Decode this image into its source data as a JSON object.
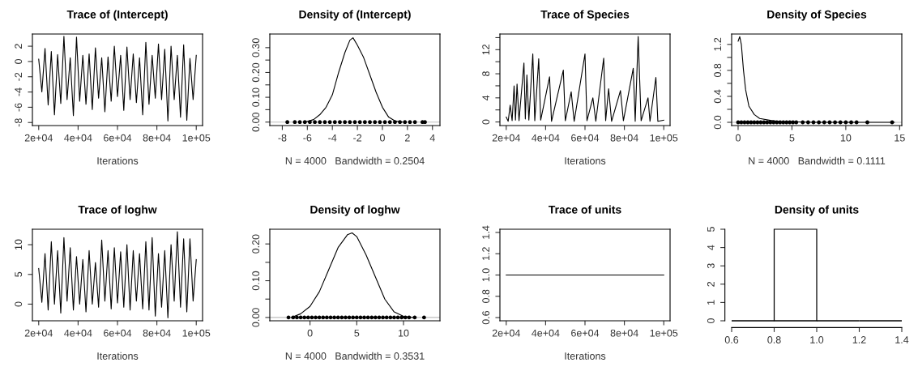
{
  "chart_data": [
    {
      "type": "line",
      "title": "Trace of (Intercept)",
      "xlabel": "Iterations",
      "xlim": [
        16800,
        103200
      ],
      "ylim": [
        -8.4,
        3.6
      ],
      "xticks": [
        {
          "value": 20000,
          "label": "2e+04"
        },
        {
          "value": 40000,
          "label": "4e+04"
        },
        {
          "value": 60000,
          "label": "6e+04"
        },
        {
          "value": 80000,
          "label": "8e+04"
        },
        {
          "value": 100000,
          "label": "1e+05"
        }
      ],
      "yticks": [
        -8,
        -6,
        -4,
        -2,
        0,
        2
      ],
      "x": [
        20000,
        21600,
        23200,
        24800,
        26400,
        28000,
        29600,
        31200,
        32800,
        34400,
        36000,
        37600,
        39200,
        40800,
        42400,
        44000,
        45600,
        47200,
        48800,
        50400,
        52000,
        53600,
        55200,
        56800,
        58400,
        60000,
        61600,
        63200,
        64800,
        66400,
        68000,
        69600,
        71200,
        72800,
        74400,
        76000,
        77600,
        79200,
        80800,
        82400,
        84000,
        85600,
        87200,
        88800,
        90400,
        92000,
        93600,
        95200,
        96800,
        98400,
        100000
      ],
      "series": [
        {
          "color": "#000000",
          "values": [
            0.3,
            -4.0,
            1.7,
            -5.7,
            1.3,
            -7.0,
            0.9,
            -5.5,
            3.3,
            -5.0,
            0.5,
            -7.1,
            3.2,
            -5.2,
            0.8,
            -5.6,
            1.0,
            -6.3,
            1.8,
            -4.8,
            0.5,
            -6.6,
            0.6,
            -5.2,
            2.0,
            -4.6,
            0.8,
            -6.4,
            1.9,
            -5.0,
            1.0,
            -5.4,
            0.5,
            -7.0,
            2.5,
            -5.6,
            0.8,
            -4.8,
            2.3,
            -5.0,
            1.6,
            -7.8,
            2.0,
            -5.0,
            0.8,
            -7.3,
            2.2,
            -7.7,
            0.4,
            -5.0,
            0.8
          ]
        }
      ]
    },
    {
      "type": "line",
      "title": "Density of (Intercept)",
      "xlabel": "N = 4000   Bandwidth = 0.2504",
      "xlim": [
        -9.0,
        4.6
      ],
      "ylim": [
        -0.014,
        0.355
      ],
      "xticks": [
        -8,
        -6,
        -4,
        -2,
        0,
        2,
        4
      ],
      "yticks": [
        {
          "value": 0,
          "label": "0.00"
        },
        {
          "value": 0.05,
          "label": null
        },
        {
          "value": 0.1,
          "label": "0.10"
        },
        {
          "value": 0.15,
          "label": null
        },
        {
          "value": 0.2,
          "label": "0.20"
        },
        {
          "value": 0.25,
          "label": null
        },
        {
          "value": 0.3,
          "label": "0.30"
        }
      ],
      "ref_lines": [
        {
          "axis": "y",
          "value": 0,
          "color": "#bebebe"
        }
      ],
      "series": [
        {
          "color": "#000000",
          "x": [
            -6.2,
            -5.5,
            -5,
            -4.5,
            -4,
            -3.5,
            -3,
            -2.6,
            -2.35,
            -2,
            -1.5,
            -1,
            -0.5,
            0,
            0.5,
            1,
            1.6
          ],
          "values": [
            0,
            0.01,
            0.03,
            0.06,
            0.11,
            0.2,
            0.28,
            0.33,
            0.34,
            0.31,
            0.26,
            0.19,
            0.12,
            0.06,
            0.02,
            0.005,
            0
          ]
        },
        {
          "type": "scatter",
          "color": "#000000",
          "x": [
            -7.6,
            -7.0,
            -6.6,
            -6.2,
            -5.8,
            -5.4,
            -5.0,
            -4.6,
            -4.2,
            -3.8,
            -3.4,
            -3.0,
            -2.6,
            -2.2,
            -1.8,
            -1.4,
            -1.0,
            -0.6,
            -0.2,
            0.2,
            0.6,
            1.0,
            1.4,
            1.8,
            2.2,
            2.6,
            3.2,
            3.4
          ],
          "values": [
            0,
            0,
            0,
            0,
            0,
            0,
            0,
            0,
            0,
            0,
            0,
            0,
            0,
            0,
            0,
            0,
            0,
            0,
            0,
            0,
            0,
            0,
            0,
            0,
            0,
            0,
            0,
            0
          ]
        }
      ]
    },
    {
      "type": "line",
      "title": "Trace of Species",
      "xlabel": "Iterations",
      "xlim": [
        16800,
        103200
      ],
      "ylim": [
        -0.6,
        14.6
      ],
      "xticks": [
        {
          "value": 20000,
          "label": "2e+04"
        },
        {
          "value": 40000,
          "label": "4e+04"
        },
        {
          "value": 60000,
          "label": "6e+04"
        },
        {
          "value": 80000,
          "label": "8e+04"
        },
        {
          "value": 100000,
          "label": "1e+05"
        }
      ],
      "yticks": [
        0,
        {
          "value": 2,
          "label": null
        },
        4,
        {
          "value": 6,
          "label": null
        },
        8,
        {
          "value": 10,
          "label": null
        },
        12,
        {
          "value": 14,
          "label": null
        }
      ],
      "series": [
        {
          "color": "#000000",
          "x": [
            20000,
            21000,
            22000,
            23000,
            24000,
            24700,
            25500,
            26500,
            29000,
            29700,
            30500,
            31500,
            33500,
            34500,
            36500,
            37500,
            42000,
            43000,
            49000,
            50000,
            53000,
            54500,
            60000,
            61000,
            64000,
            65500,
            69500,
            70500,
            72000,
            73500,
            78000,
            79500,
            84500,
            85500,
            87000,
            88500,
            92000,
            93000,
            96000,
            97000,
            100000
          ],
          "values": [
            0.8,
            0.1,
            2.8,
            0.2,
            6.0,
            0.3,
            6.3,
            0.2,
            9.8,
            0.5,
            7.8,
            0.3,
            11.3,
            0.2,
            10.5,
            0.3,
            7.5,
            0.1,
            8.6,
            0.2,
            5.0,
            0.1,
            11.3,
            0.2,
            4.0,
            0.1,
            10.6,
            0.2,
            5.5,
            0.1,
            5.2,
            0.2,
            8.9,
            0.1,
            14.2,
            0.2,
            4.0,
            0.1,
            7.4,
            0.1,
            0.3
          ]
        }
      ]
    },
    {
      "type": "line",
      "title": "Density of Species",
      "xlabel": "N = 4000   Bandwidth = 0.1111",
      "xlim": [
        -0.6,
        15.2
      ],
      "ylim": [
        -0.05,
        1.36
      ],
      "xticks": [
        0,
        5,
        10,
        15
      ],
      "yticks": [
        {
          "value": 0,
          "label": "0.0"
        },
        {
          "value": 0.2,
          "label": null
        },
        {
          "value": 0.4,
          "label": "0.4"
        },
        {
          "value": 0.6,
          "label": null
        },
        {
          "value": 0.8,
          "label": "0.8"
        },
        {
          "value": 1.0,
          "label": null
        },
        {
          "value": 1.2,
          "label": "1.2"
        }
      ],
      "ref_lines": [
        {
          "axis": "y",
          "value": 0,
          "color": "#bebebe"
        }
      ],
      "series": [
        {
          "color": "#000000",
          "x": [
            0,
            0.15,
            0.3,
            0.5,
            0.7,
            1,
            1.5,
            2,
            3,
            4,
            5,
            7,
            10,
            14.5
          ],
          "values": [
            1.25,
            1.32,
            1.2,
            0.8,
            0.5,
            0.25,
            0.12,
            0.06,
            0.03,
            0.01,
            0.01,
            0,
            0,
            0
          ]
        },
        {
          "type": "scatter",
          "color": "#000000",
          "x": [
            0,
            0.3,
            0.6,
            0.9,
            1.2,
            1.5,
            1.8,
            2.1,
            2.4,
            2.7,
            3.0,
            3.3,
            3.6,
            3.9,
            4.2,
            4.5,
            4.8,
            5.1,
            5.4,
            6.0,
            6.5,
            7.0,
            7.5,
            8.0,
            8.5,
            9.0,
            9.5,
            10.0,
            10.5,
            11.0,
            12.0,
            14.3
          ],
          "values": [
            0,
            0,
            0,
            0,
            0,
            0,
            0,
            0,
            0,
            0,
            0,
            0,
            0,
            0,
            0,
            0,
            0,
            0,
            0,
            0,
            0,
            0,
            0,
            0,
            0,
            0,
            0,
            0,
            0,
            0,
            0,
            0
          ]
        }
      ]
    },
    {
      "type": "line",
      "title": "Trace of loghw",
      "xlabel": "Iterations",
      "xlim": [
        16800,
        103200
      ],
      "ylim": [
        -2.8,
        12.6
      ],
      "xticks": [
        {
          "value": 20000,
          "label": "2e+04"
        },
        {
          "value": 40000,
          "label": "4e+04"
        },
        {
          "value": 60000,
          "label": "6e+04"
        },
        {
          "value": 80000,
          "label": "8e+04"
        },
        {
          "value": 100000,
          "label": "1e+05"
        }
      ],
      "yticks": [
        0,
        5,
        10
      ],
      "x": [
        20000,
        21600,
        23200,
        24800,
        26400,
        28000,
        29600,
        31200,
        32800,
        34400,
        36000,
        37600,
        39200,
        40800,
        42400,
        44000,
        45600,
        47200,
        48800,
        50400,
        52000,
        53600,
        55200,
        56800,
        58400,
        60000,
        61600,
        63200,
        64800,
        66400,
        68000,
        69600,
        71200,
        72800,
        74400,
        76000,
        77600,
        79200,
        80800,
        82400,
        84000,
        85600,
        87200,
        88800,
        90400,
        92000,
        93600,
        95200,
        96800,
        98400,
        100000
      ],
      "series": [
        {
          "color": "#000000",
          "values": [
            6,
            0.3,
            8.5,
            -1,
            10.5,
            0,
            9,
            -1.5,
            11.2,
            0.5,
            9.5,
            -1,
            8,
            0,
            7.5,
            -1.3,
            9,
            0,
            7,
            -0.5,
            10.8,
            0.5,
            9,
            -0.8,
            9.5,
            0.2,
            8.8,
            -0.5,
            10,
            -1,
            9,
            0.5,
            8.5,
            -0.8,
            10.5,
            -1,
            11.2,
            -2,
            8.5,
            -0.5,
            9,
            -2.3,
            10,
            0.5,
            12.2,
            -0.5,
            11,
            -1.3,
            11,
            0.5,
            7.5
          ]
        }
      ]
    },
    {
      "type": "line",
      "title": "Density of loghw",
      "xlabel": "N = 4000   Bandwidth = 0.3531",
      "xlim": [
        -4.3,
        13.9
      ],
      "ylim": [
        -0.009,
        0.24
      ],
      "xticks": [
        0,
        5,
        10
      ],
      "yticks": [
        {
          "value": 0,
          "label": "0.00"
        },
        {
          "value": 0.05,
          "label": null
        },
        {
          "value": 0.1,
          "label": "0.10"
        },
        {
          "value": 0.15,
          "label": null
        },
        {
          "value": 0.2,
          "label": "0.20"
        }
      ],
      "ref_lines": [
        {
          "axis": "y",
          "value": 0,
          "color": "#bebebe"
        }
      ],
      "series": [
        {
          "color": "#000000",
          "x": [
            -2,
            -1,
            0,
            1,
            2,
            3,
            4,
            4.5,
            5,
            6,
            7,
            8,
            9,
            10,
            11
          ],
          "values": [
            0,
            0.01,
            0.03,
            0.07,
            0.13,
            0.19,
            0.225,
            0.23,
            0.22,
            0.17,
            0.11,
            0.05,
            0.015,
            0.003,
            0
          ]
        },
        {
          "type": "scatter",
          "color": "#000000",
          "x": [
            -2.3,
            -1.8,
            -1.4,
            -1.0,
            -0.6,
            -0.2,
            0.2,
            0.6,
            1.0,
            1.4,
            1.8,
            2.2,
            2.6,
            3.0,
            3.4,
            3.8,
            4.2,
            4.6,
            5.0,
            5.4,
            5.8,
            6.2,
            6.6,
            7.0,
            7.4,
            7.8,
            8.2,
            8.6,
            9.0,
            9.4,
            9.8,
            10.2,
            10.6,
            11.2,
            12.2
          ],
          "values": [
            0,
            0,
            0,
            0,
            0,
            0,
            0,
            0,
            0,
            0,
            0,
            0,
            0,
            0,
            0,
            0,
            0,
            0,
            0,
            0,
            0,
            0,
            0,
            0,
            0,
            0,
            0,
            0,
            0,
            0,
            0,
            0,
            0,
            0,
            0
          ]
        }
      ]
    },
    {
      "type": "line",
      "title": "Trace of units",
      "xlabel": "Iterations",
      "xlim": [
        16800,
        103200
      ],
      "ylim": [
        0.57,
        1.43
      ],
      "xticks": [
        {
          "value": 20000,
          "label": "2e+04"
        },
        {
          "value": 40000,
          "label": "4e+04"
        },
        {
          "value": 60000,
          "label": "6e+04"
        },
        {
          "value": 80000,
          "label": "8e+04"
        },
        {
          "value": 100000,
          "label": "1e+05"
        }
      ],
      "yticks": [
        {
          "value": 0.6,
          "label": "0.6"
        },
        {
          "value": 0.8,
          "label": "0.8"
        },
        {
          "value": 1.0,
          "label": "1.0"
        },
        {
          "value": 1.2,
          "label": "1.2"
        },
        {
          "value": 1.4,
          "label": "1.4"
        }
      ],
      "x": [
        20000,
        100000
      ],
      "series": [
        {
          "color": "#000000",
          "values": [
            1,
            1
          ]
        }
      ]
    },
    {
      "type": "histogram",
      "title": "Density of units",
      "xlim": [
        0.6,
        1.4
      ],
      "ylim": [
        0,
        5
      ],
      "xticks": [
        {
          "value": 0.6,
          "label": "0.6"
        },
        {
          "value": 0.8,
          "label": "0.8"
        },
        {
          "value": 1.0,
          "label": "1.0"
        },
        {
          "value": 1.2,
          "label": "1.2"
        },
        {
          "value": 1.4,
          "label": "1.4"
        }
      ],
      "yticks": [
        0,
        1,
        2,
        3,
        4,
        5
      ],
      "bins": [
        0.6,
        0.8,
        1.0,
        1.2,
        1.4
      ],
      "values": [
        0,
        5,
        0,
        0
      ],
      "color": "#000000"
    }
  ]
}
